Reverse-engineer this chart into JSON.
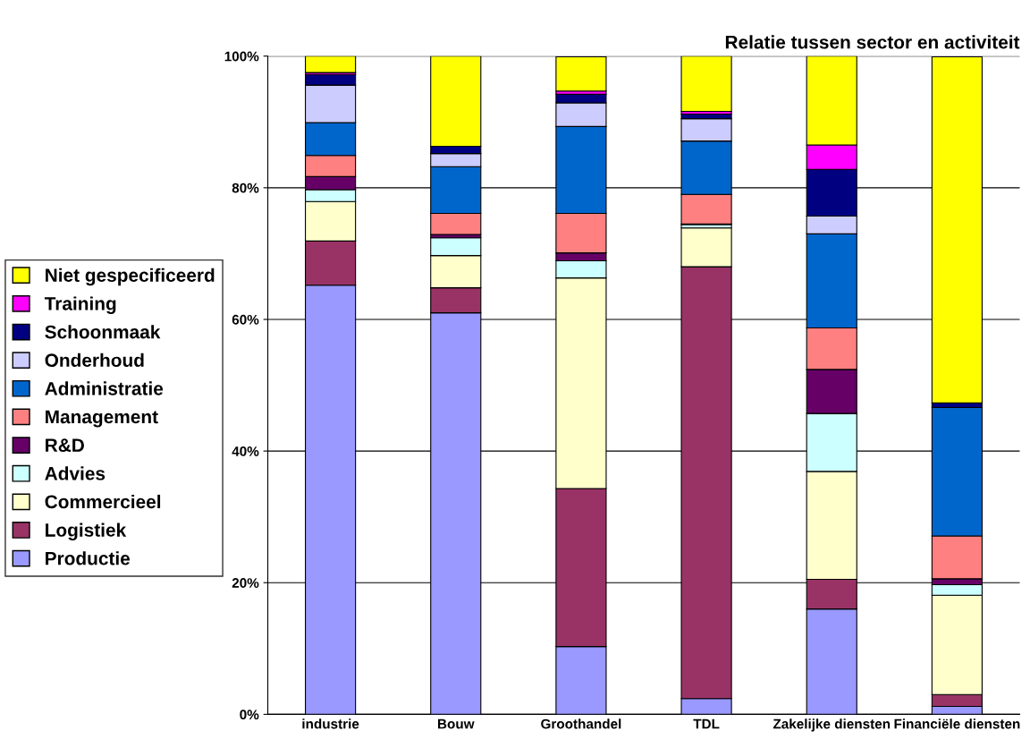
{
  "chart_data": {
    "type": "bar",
    "title": "Relatie tussen sector en activiteit",
    "stacked": true,
    "categories": [
      "industrie",
      "Bouw",
      "Groothandel",
      "TDL",
      "Zakelijke diensten",
      "Financiële diensten"
    ],
    "series": [
      {
        "name": "Productie",
        "color": "#9999ff",
        "values": [
          65.2,
          61.0,
          10.3,
          2.4,
          16.0,
          1.2
        ]
      },
      {
        "name": "Logistiek",
        "color": "#993366",
        "values": [
          6.7,
          3.8,
          24.0,
          65.6,
          4.5,
          1.8
        ]
      },
      {
        "name": "Commercieel",
        "color": "#ffffcc",
        "values": [
          6.0,
          4.9,
          32.0,
          5.9,
          16.4,
          15.1
        ]
      },
      {
        "name": "Advies",
        "color": "#ccffff",
        "values": [
          1.8,
          2.7,
          2.6,
          0.5,
          8.8,
          1.6
        ]
      },
      {
        "name": "R&D",
        "color": "#660066",
        "values": [
          2.0,
          0.5,
          1.2,
          0.1,
          6.7,
          0.9
        ]
      },
      {
        "name": "Management",
        "color": "#ff8080",
        "values": [
          3.2,
          3.2,
          6.0,
          4.5,
          6.3,
          6.5
        ]
      },
      {
        "name": "Administratie",
        "color": "#0066cc",
        "values": [
          5.0,
          7.1,
          13.2,
          8.1,
          14.3,
          19.5
        ]
      },
      {
        "name": "Onderhoud",
        "color": "#ccccff",
        "values": [
          5.7,
          2.0,
          3.6,
          3.4,
          2.7,
          null
        ]
      },
      {
        "name": "Schoonmaak",
        "color": "#000080",
        "values": [
          1.6,
          1.1,
          1.3,
          0.7,
          7.1,
          0.7
        ]
      },
      {
        "name": "Training",
        "color": "#ff00ff",
        "values": [
          0.3,
          0,
          0.5,
          0.4,
          3.7,
          0
        ]
      },
      {
        "name": "Niet gespecificeerd",
        "color": "#ffff00",
        "values": [
          2.5,
          13.7,
          5.2,
          8.4,
          13.5,
          52.6
        ]
      }
    ],
    "ylim": [
      0,
      100
    ],
    "yticks": [
      {
        "value": 0,
        "label": "0%"
      },
      {
        "value": 20,
        "label": "20%"
      },
      {
        "value": 40,
        "label": "40%"
      },
      {
        "value": 60,
        "label": "60%"
      },
      {
        "value": 80,
        "label": "80%"
      },
      {
        "value": 100,
        "label": "100%"
      }
    ],
    "grid": "y",
    "legend": "left"
  }
}
